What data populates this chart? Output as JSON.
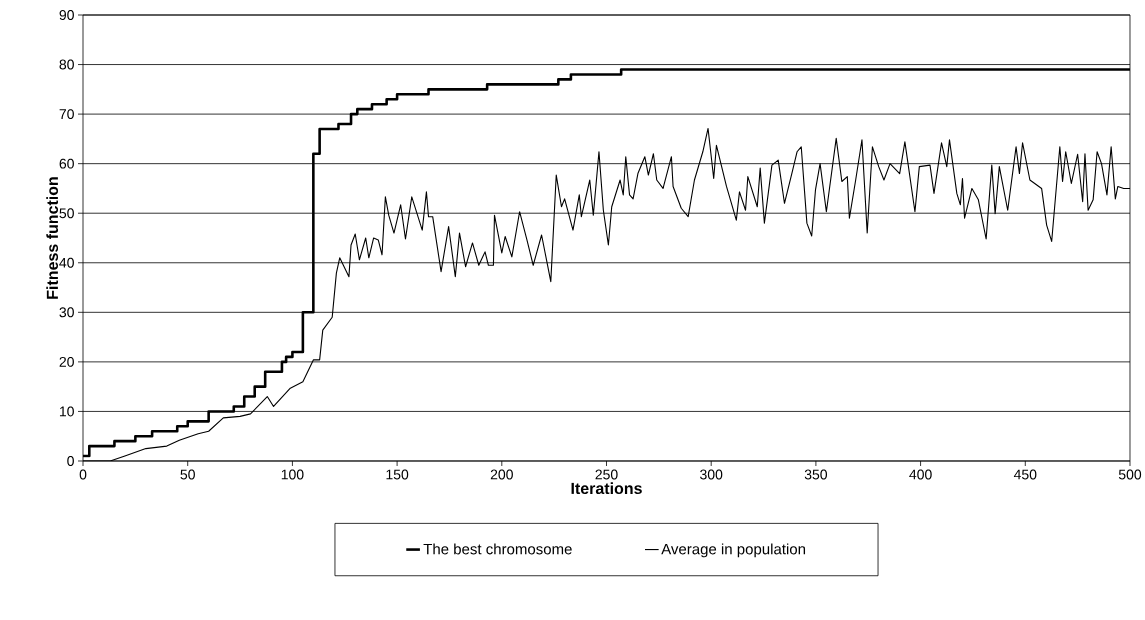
{
  "chart_data": {
    "type": "line",
    "xlabel": "Iterations",
    "ylabel": "Fitness function",
    "xlim": [
      0,
      500
    ],
    "ylim": [
      0,
      90
    ],
    "xticks": [
      0,
      50,
      100,
      150,
      200,
      250,
      300,
      350,
      400,
      450,
      500
    ],
    "yticks": [
      0,
      10,
      20,
      30,
      40,
      50,
      60,
      70,
      80,
      90
    ],
    "grid": "y",
    "legend": "bottom",
    "marker": "none",
    "line_style": "solid",
    "series": [
      {
        "name": "The best chromosome",
        "type": "step",
        "color": "#000000",
        "x": [
          0,
          3,
          15,
          25,
          33,
          45,
          50,
          60,
          72,
          77,
          82,
          87,
          95,
          97,
          100,
          105,
          110,
          113,
          122,
          128,
          131,
          138,
          145,
          150,
          165,
          193,
          227,
          233,
          257,
          500
        ],
        "values": [
          1,
          3,
          4,
          5,
          6,
          7,
          8,
          10,
          11,
          13,
          15,
          18,
          20,
          21,
          22,
          30,
          62,
          67,
          68,
          70,
          71,
          72,
          73,
          74,
          75,
          76,
          77,
          78,
          79,
          79
        ]
      },
      {
        "name": "Average in population",
        "color": "#000000",
        "x": [
          0,
          13,
          20,
          30,
          40,
          46,
          55,
          60,
          67,
          75,
          80,
          88,
          91,
          99,
          105,
          110,
          113,
          114.5,
          119,
          121,
          122.6,
          127,
          128,
          130,
          132,
          135,
          136.5,
          138.8,
          141,
          142.8,
          144.4,
          146,
          148.5,
          151.7,
          154,
          157,
          162,
          164,
          165,
          167,
          171,
          174.6,
          177.8,
          179.8,
          182.7,
          186,
          189,
          192,
          193.6,
          196,
          196.5,
          200,
          201.6,
          204.8,
          208.5,
          212,
          215,
          219,
          223.4,
          226,
          228.5,
          230,
          234,
          237,
          238,
          242,
          243.7,
          246.4,
          248.5,
          250.9,
          252.5,
          256.5,
          258,
          259.2,
          261,
          262.7,
          265,
          268.3,
          270,
          272.4,
          274,
          277,
          281,
          281.8,
          285.7,
          289,
          292,
          296,
          298.5,
          301.2,
          302.5,
          307.3,
          312,
          313.5,
          316.4,
          317.5,
          322,
          323.4,
          325.4,
          329,
          332,
          335,
          338.5,
          341,
          343,
          345.7,
          348,
          349.8,
          352,
          355,
          359.7,
          362.4,
          365,
          366,
          369,
          372,
          374.5,
          377,
          380,
          382.5,
          385.4,
          390,
          392.5,
          397.3,
          399.4,
          404.5,
          406.4,
          410,
          412.5,
          413.8,
          417.3,
          419,
          420,
          421,
          424.5,
          427.6,
          431.3,
          434,
          435.6,
          437.6,
          441.6,
          445.6,
          447.2,
          448.7,
          452.2,
          457.8,
          460.2,
          462.6,
          466.5,
          467.8,
          469.3,
          472,
          475,
          477.4,
          478.5,
          480,
          482.4,
          484.3,
          486.4,
          489,
          491,
          493,
          494.2,
          497,
          500
        ],
        "values": [
          0,
          0,
          1,
          2.5,
          3,
          4.2,
          5.5,
          6,
          8.7,
          9,
          9.5,
          13,
          11,
          14.7,
          16,
          20.4,
          20.4,
          26.4,
          29,
          37.9,
          41,
          37.2,
          43.6,
          45.8,
          40.6,
          45,
          41,
          45,
          44.6,
          41.6,
          53.3,
          49.6,
          46,
          51.7,
          44.8,
          53.3,
          46.6,
          54.3,
          49.3,
          49.3,
          38.2,
          47.3,
          37.2,
          46,
          39.2,
          44,
          39.5,
          42.2,
          39.5,
          39.5,
          49.6,
          42,
          45.3,
          41.2,
          50.3,
          44.6,
          39.5,
          45.6,
          36.2,
          57.7,
          51.3,
          52.9,
          46.6,
          53.7,
          49.3,
          56.7,
          49.6,
          62.4,
          50.6,
          43.6,
          51.3,
          56.7,
          53.7,
          61.4,
          53.7,
          52.9,
          58,
          61.4,
          57.7,
          62,
          56.7,
          55,
          61.4,
          55.4,
          51,
          49.3,
          56.7,
          62.4,
          67.1,
          57,
          63.7,
          55.4,
          48.6,
          54.3,
          50.6,
          57.4,
          51.3,
          59.1,
          48,
          59.7,
          60.7,
          52,
          58,
          62.4,
          63.4,
          48,
          45.4,
          54.7,
          60,
          50.3,
          65.1,
          56.4,
          57.4,
          49,
          56.7,
          64.8,
          46,
          63.4,
          59.4,
          56.7,
          60,
          58,
          64.4,
          50.3,
          59.4,
          59.7,
          54,
          64.2,
          59.4,
          64.8,
          54,
          51.7,
          57,
          49,
          55,
          52.7,
          44.8,
          59.7,
          49.9,
          59.4,
          50.6,
          63.4,
          58,
          64.2,
          56.7,
          55,
          47.6,
          44.3,
          63.4,
          56.4,
          62.4,
          56,
          61.9,
          52.3,
          62,
          50.6,
          52.7,
          62.4,
          60,
          53.7,
          63.4,
          52.9,
          55.4,
          55,
          55
        ]
      }
    ]
  }
}
